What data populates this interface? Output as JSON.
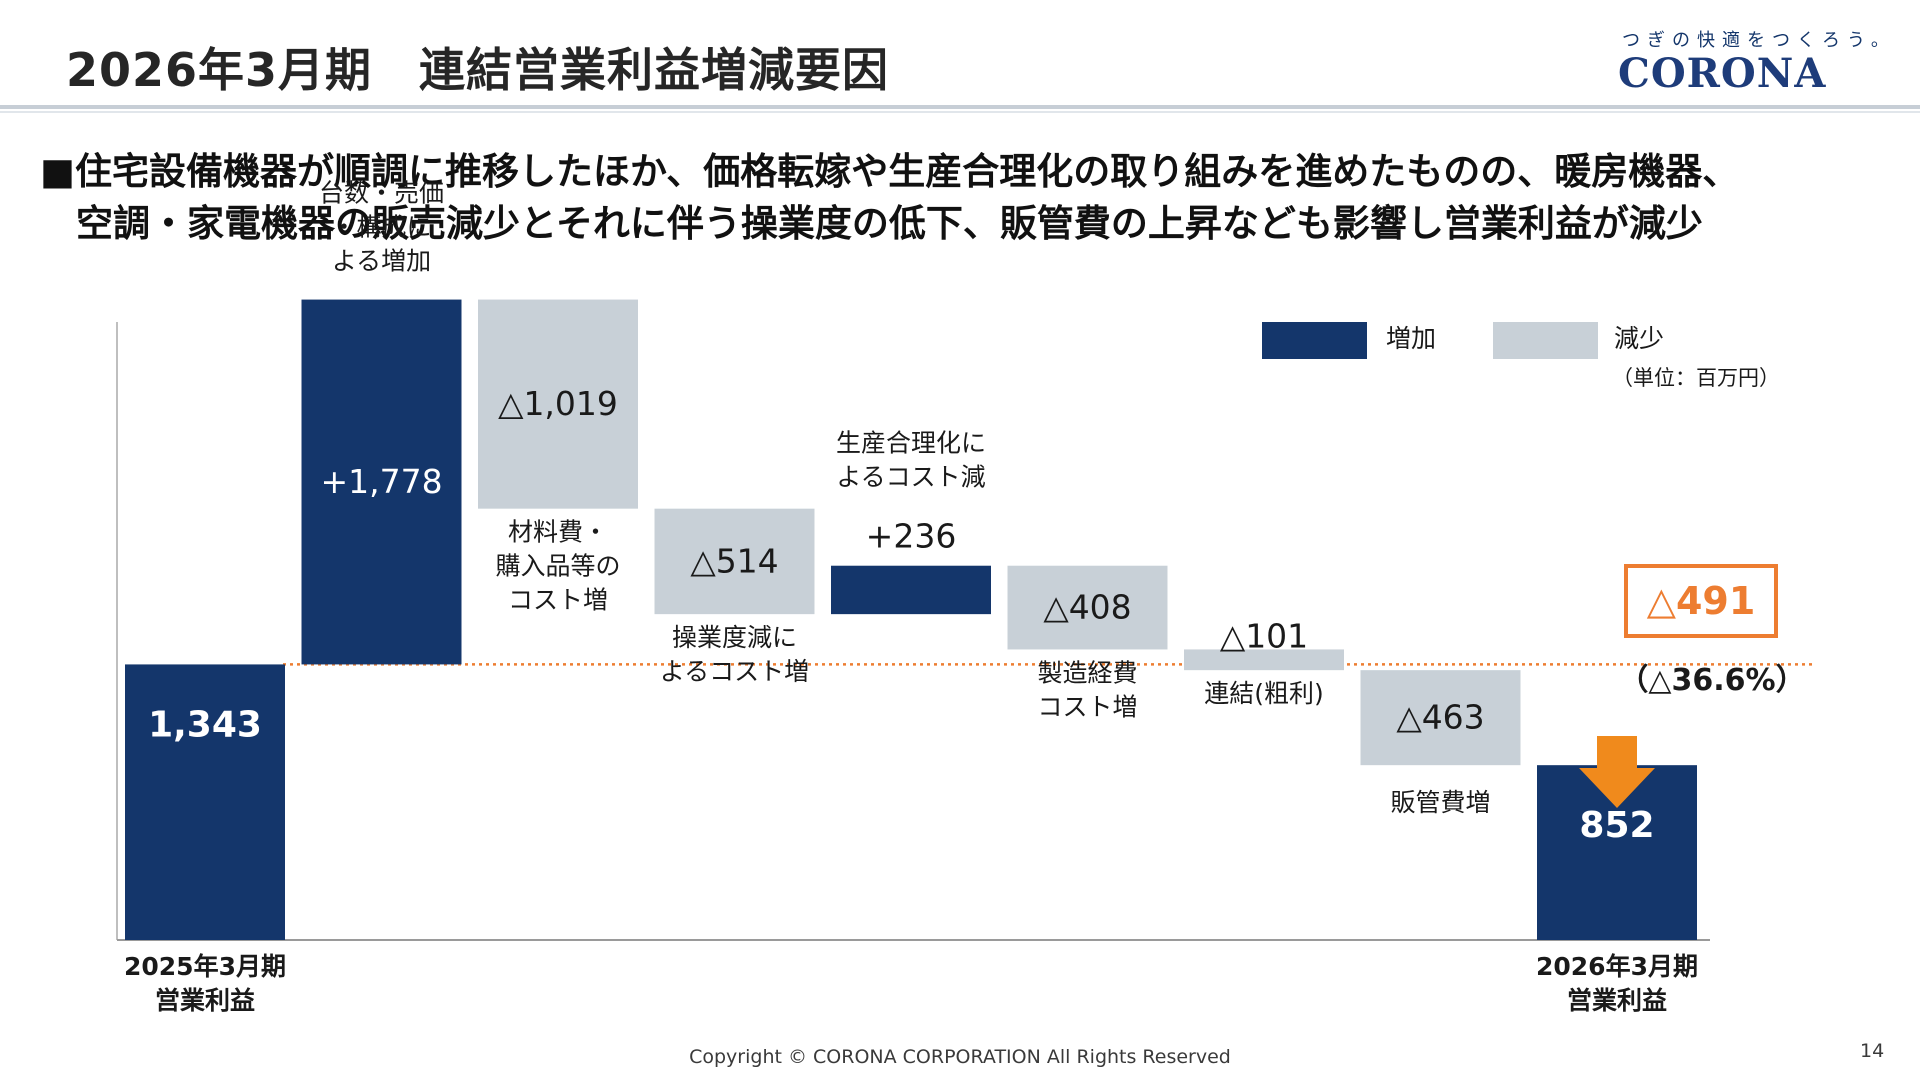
{
  "header": {
    "title": "2026年3月期　連結営業利益増減要因",
    "logo_tagline": "つぎの快適をつくろう。",
    "logo_text": "CORONA"
  },
  "summary": {
    "bullet": "■",
    "line1": "住宅設備機器が順調に推移したほか、価格転嫁や生産合理化の取り組みを進めたものの、暖房機器、",
    "line2": "空調・家電機器の販売減少とそれに伴う操業度の低下、販管費の上昇なども影響し営業利益が減少"
  },
  "colors": {
    "increase": "#14366b",
    "decrease": "#c8d0d7",
    "accent": "#ed7d31",
    "arrow": "#f08a1c"
  },
  "chart_data": {
    "type": "waterfall",
    "unit": "（単位：百万円）",
    "legend": [
      {
        "label": "増加",
        "color": "#14366b"
      },
      {
        "label": "減少",
        "color": "#c8d0d7"
      }
    ],
    "legend_position": "top-right",
    "steps": [
      {
        "kind": "total",
        "value": 1343,
        "value_label": "1,343",
        "labels": [
          "2025年3月期",
          "営業利益"
        ]
      },
      {
        "kind": "increase",
        "value": 1778,
        "value_label": "+1,778",
        "labels": [
          "台数・売価",
          "・構成に",
          "よる増加"
        ]
      },
      {
        "kind": "decrease",
        "value": -1019,
        "value_label": "△1,019",
        "labels": [
          "材料費・",
          "購入品等の",
          "コスト増"
        ]
      },
      {
        "kind": "decrease",
        "value": -514,
        "value_label": "△514",
        "labels": [
          "操業度減に",
          "よるコスト増"
        ]
      },
      {
        "kind": "increase",
        "value": 236,
        "value_label": "+236",
        "labels": [
          "生産合理化に",
          "よるコスト減"
        ]
      },
      {
        "kind": "decrease",
        "value": -408,
        "value_label": "△408",
        "labels": [
          "製造経費",
          "コスト増"
        ]
      },
      {
        "kind": "decrease",
        "value": -101,
        "value_label": "△101",
        "labels": [
          "連結(粗利)"
        ]
      },
      {
        "kind": "decrease",
        "value": -463,
        "value_label": "△463",
        "labels": [
          "販管費増"
        ]
      },
      {
        "kind": "total",
        "value": 852,
        "value_label": "852",
        "labels": [
          "2026年3月期",
          "営業利益"
        ]
      }
    ],
    "reference_line_value": 1343,
    "change_label": "△491",
    "change_pct_label": "（△36.6%）"
  },
  "footer": {
    "copyright": "Copyright © CORONA CORPORATION All Rights Reserved",
    "page": "14"
  }
}
